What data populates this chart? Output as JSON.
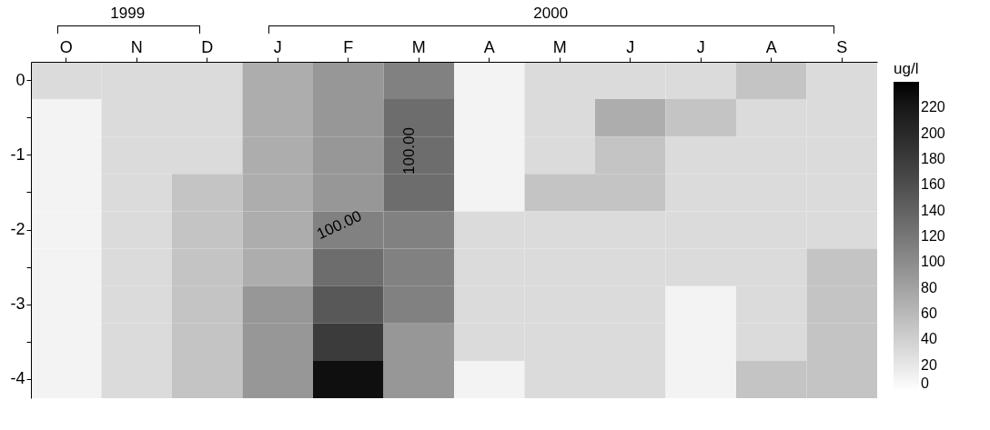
{
  "chart_data": {
    "type": "heatmap",
    "categories": [
      "O",
      "N",
      "D",
      "J",
      "F",
      "M",
      "A",
      "M",
      "J",
      "J",
      "A",
      "S"
    ],
    "y_categories": [
      "0",
      null,
      "-1",
      null,
      "-2",
      null,
      "-3",
      null,
      "-4"
    ],
    "cells": [
      [
        30,
        30,
        30,
        70,
        90,
        110,
        10,
        30,
        30,
        30,
        50,
        30
      ],
      [
        10,
        30,
        30,
        70,
        90,
        130,
        10,
        30,
        70,
        50,
        30,
        30
      ],
      [
        10,
        30,
        30,
        70,
        90,
        130,
        10,
        30,
        50,
        30,
        30,
        30
      ],
      [
        10,
        30,
        50,
        70,
        90,
        130,
        10,
        50,
        50,
        30,
        30,
        30
      ],
      [
        10,
        30,
        50,
        70,
        110,
        110,
        30,
        30,
        30,
        30,
        30,
        30
      ],
      [
        10,
        30,
        50,
        70,
        130,
        110,
        30,
        30,
        30,
        30,
        30,
        50
      ],
      [
        10,
        30,
        50,
        90,
        150,
        110,
        30,
        30,
        30,
        10,
        30,
        50
      ],
      [
        10,
        30,
        50,
        90,
        180,
        90,
        30,
        30,
        30,
        10,
        30,
        50
      ],
      [
        10,
        30,
        50,
        90,
        230,
        90,
        10,
        30,
        30,
        10,
        50,
        50
      ]
    ],
    "clabel": "ug/l",
    "clim": [
      0,
      240
    ],
    "cticks": [
      0,
      20,
      40,
      60,
      80,
      100,
      120,
      140,
      160,
      180,
      200,
      220
    ],
    "annotations": [
      "1999",
      "2000",
      "100.00",
      "100.00"
    ]
  }
}
